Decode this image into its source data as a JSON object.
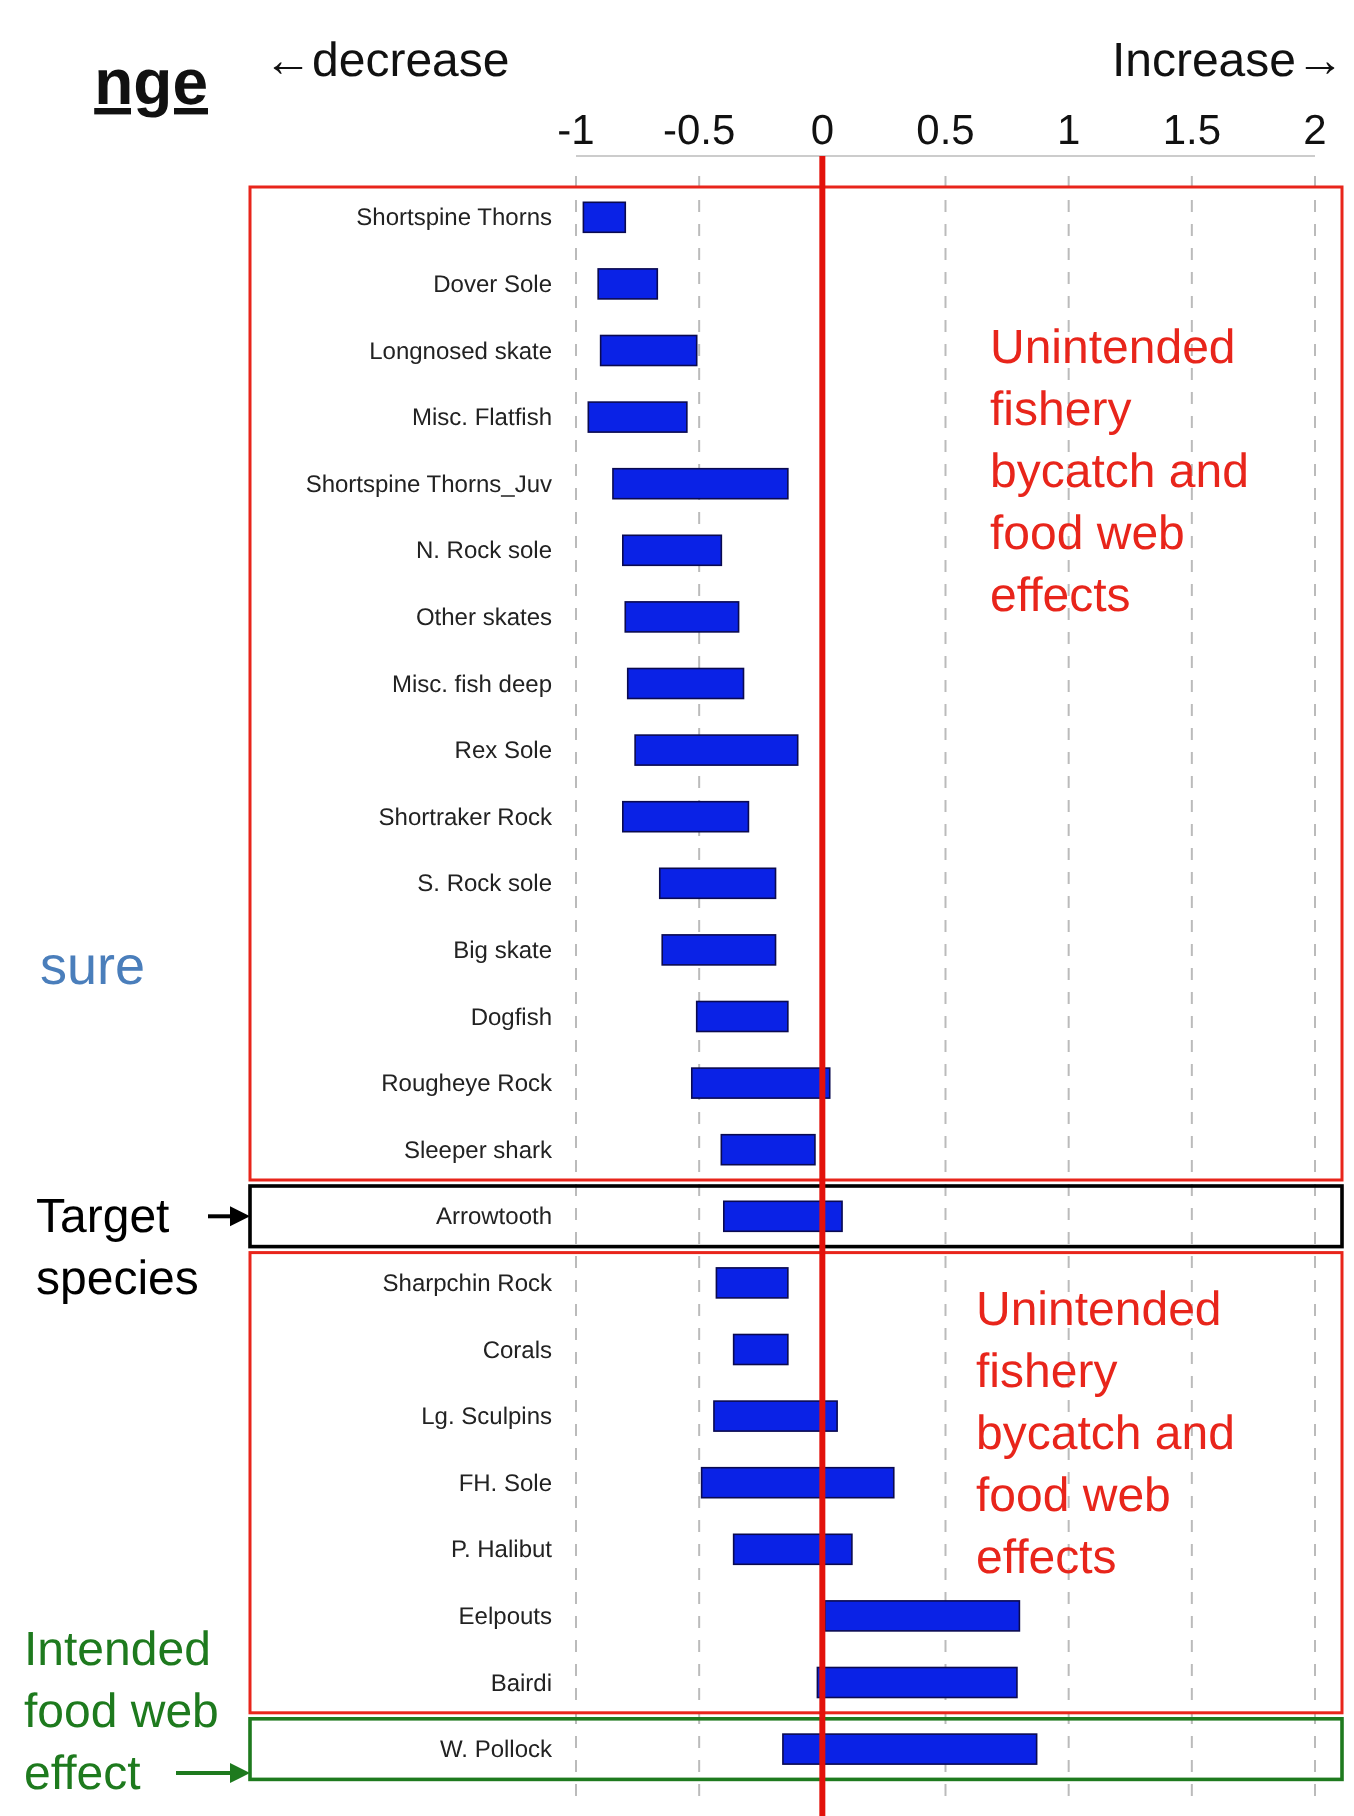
{
  "chart_data": {
    "type": "bar",
    "orientation": "horizontal",
    "categories": [
      "Shortspine Thorns",
      "Dover Sole",
      "Longnosed skate",
      "Misc. Flatfish",
      "Shortspine Thorns_Juv",
      "N. Rock sole",
      "Other skates",
      "Misc. fish deep",
      "Rex Sole",
      "Shortraker Rock",
      "S. Rock sole",
      "Big skate",
      "Dogfish",
      "Rougheye Rock",
      "Sleeper shark",
      "Arrowtooth",
      "Sharpchin Rock",
      "Corals",
      "Lg. Sculpins",
      "FH. Sole",
      "P. Halibut",
      "Eelpouts",
      "Bairdi",
      "W. Pollock"
    ],
    "base": [
      -0.97,
      -0.91,
      -0.9,
      -0.95,
      -0.85,
      -0.81,
      -0.8,
      -0.79,
      -0.76,
      -0.81,
      -0.66,
      -0.65,
      -0.51,
      -0.53,
      -0.41,
      -0.4,
      -0.43,
      -0.36,
      -0.44,
      -0.49,
      -0.36,
      0.01,
      -0.02,
      -0.16
    ],
    "values": [
      0.17,
      0.24,
      0.39,
      0.4,
      0.71,
      0.4,
      0.46,
      0.47,
      0.66,
      0.51,
      0.47,
      0.46,
      0.37,
      0.56,
      0.38,
      0.48,
      0.29,
      0.22,
      0.5,
      0.78,
      0.48,
      0.79,
      0.81,
      1.03
    ],
    "color": "#0a22e6",
    "xlim": [
      -1,
      2
    ],
    "xticks": [
      -1,
      -0.5,
      0,
      0.5,
      1,
      1.5,
      2
    ],
    "grid": "x",
    "ref_lines": [
      {
        "axis": "x",
        "value": 0,
        "color": "#e3120b"
      }
    ],
    "annotations": [
      "←decrease",
      "Increase→",
      "nge",
      "sure",
      "Unintended fishery bycatch and food web effects",
      "Target species",
      "Unintended fishery bycatch and food web effects",
      "Intended food web effect"
    ]
  }
}
